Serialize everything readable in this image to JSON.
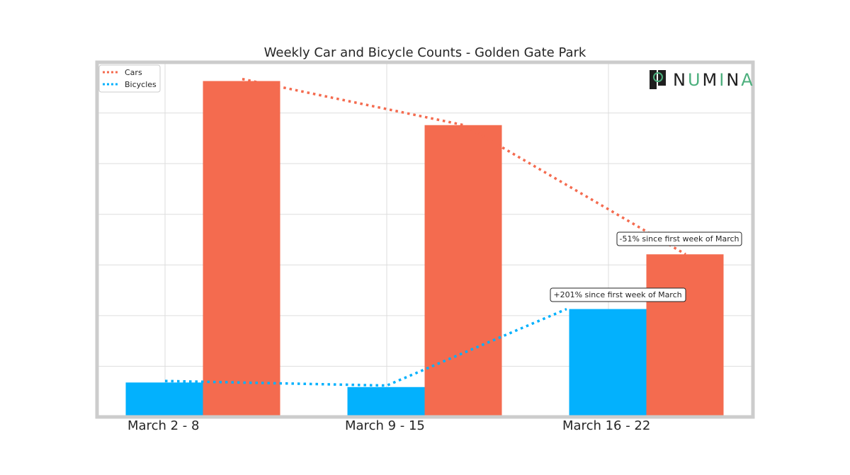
{
  "logo": {
    "text": "NUMINA",
    "brand_color": "#4caf7d",
    "mark_color": "#1f1f1f"
  },
  "colors": {
    "cars": "#f46b4f",
    "bicycles": "#03b1fd",
    "grid": "#dddddd",
    "frame": "#cccccc"
  },
  "chart_data": {
    "type": "bar",
    "title": "Weekly Car and Bicycle Counts - Golden Gate Park",
    "xlabel": "",
    "ylabel": "",
    "categories": [
      "March 2 - 8",
      "March 9 - 15",
      "March 16 - 22"
    ],
    "series": [
      {
        "name": "Bicycles",
        "color": "#03b1fd",
        "values": [
          0.68,
          0.59,
          2.13
        ],
        "line_values": [
          0.71,
          0.62,
          2.13
        ]
      },
      {
        "name": "Cars",
        "color": "#f46b4f",
        "values": [
          6.63,
          5.76,
          3.21
        ],
        "line_values": [
          6.67,
          5.76,
          3.21
        ]
      }
    ],
    "ylim": [
      0,
      7
    ],
    "y_ticks": [
      1,
      2,
      3,
      4,
      5,
      6
    ],
    "y_tick_labels_visible": false,
    "grid": true,
    "legend": {
      "placement": "top-left",
      "style": "dotted line",
      "entries": [
        "Cars",
        "Bicycles"
      ]
    },
    "annotations": [
      {
        "text": "-51% since first week of March",
        "series": "Cars",
        "category": "March 16 - 22"
      },
      {
        "text": "+201% since first week of March",
        "series": "Bicycles",
        "category": "March 16 - 22"
      }
    ]
  }
}
